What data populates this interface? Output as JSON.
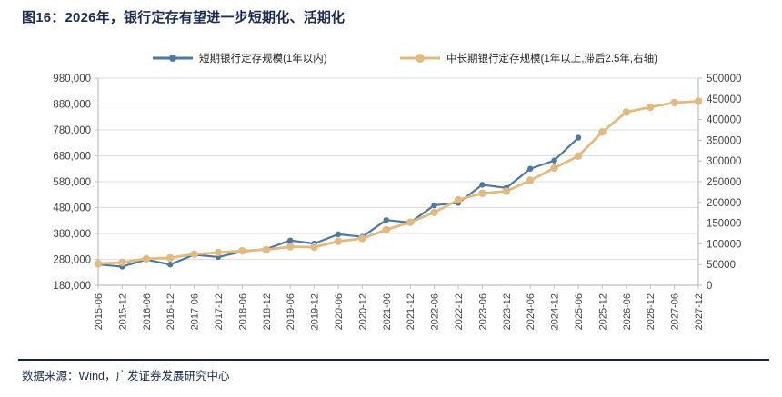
{
  "title": "图16：2026年，银行定存有望进一步短期化、活期化",
  "footer": {
    "source_label": "数据来源：Wind，广发证券发展研究中心"
  },
  "colors": {
    "title_navy": "#1b2b50",
    "footer_navy": "#1b2b50",
    "rule_dark": "#16223f",
    "grid": "#dedede",
    "axis": "#bfbfbf",
    "tick_label": "#404040",
    "legend_text": "#262626"
  },
  "chart_data": {
    "type": "line",
    "categories": [
      "2015-06",
      "2015-12",
      "2016-06",
      "2016-12",
      "2017-06",
      "2017-12",
      "2018-06",
      "2018-12",
      "2019-06",
      "2019-12",
      "2020-06",
      "2020-12",
      "2021-06",
      "2021-12",
      "2022-06",
      "2022-12",
      "2023-06",
      "2023-12",
      "2024-06",
      "2024-12",
      "2025-06",
      "2025-12",
      "2026-06",
      "2026-12",
      "2027-06",
      "2027-12"
    ],
    "series": [
      {
        "id": "short-term-deposits",
        "name": "短期银行定存规模(1年以内)",
        "axis": "left",
        "color": "#4e78a0",
        "line_width": 2.2,
        "marker_radius": 3.2,
        "legend_marker_radius": 4,
        "values": [
          260000,
          252000,
          279000,
          260000,
          298000,
          289000,
          310000,
          320000,
          353000,
          341000,
          377000,
          367000,
          432000,
          422000,
          489000,
          498000,
          568000,
          556000,
          630000,
          662000,
          750000,
          null,
          null,
          null,
          null,
          null
        ]
      },
      {
        "id": "medium-long-term-deposits",
        "name": "中长期银行定存规模(1年以上,滞后2.5年,右轴)",
        "axis": "right",
        "color": "#e0ba81",
        "line_width": 2.8,
        "marker_radius": 4.2,
        "legend_marker_radius": 5,
        "values": [
          52000,
          55000,
          64000,
          66000,
          75000,
          79000,
          83000,
          86000,
          93000,
          92000,
          106000,
          113000,
          134000,
          152000,
          176000,
          206000,
          222000,
          227000,
          253000,
          283000,
          312000,
          370000,
          418000,
          430000,
          441000,
          444000
        ]
      }
    ],
    "left_axis": {
      "min": 180000,
      "max": 980000,
      "step": 100000,
      "format": "comma"
    },
    "right_axis": {
      "min": 0,
      "max": 500000,
      "step": 50000,
      "format": "plain"
    },
    "legend_position": "top",
    "grid": "horizontal"
  }
}
